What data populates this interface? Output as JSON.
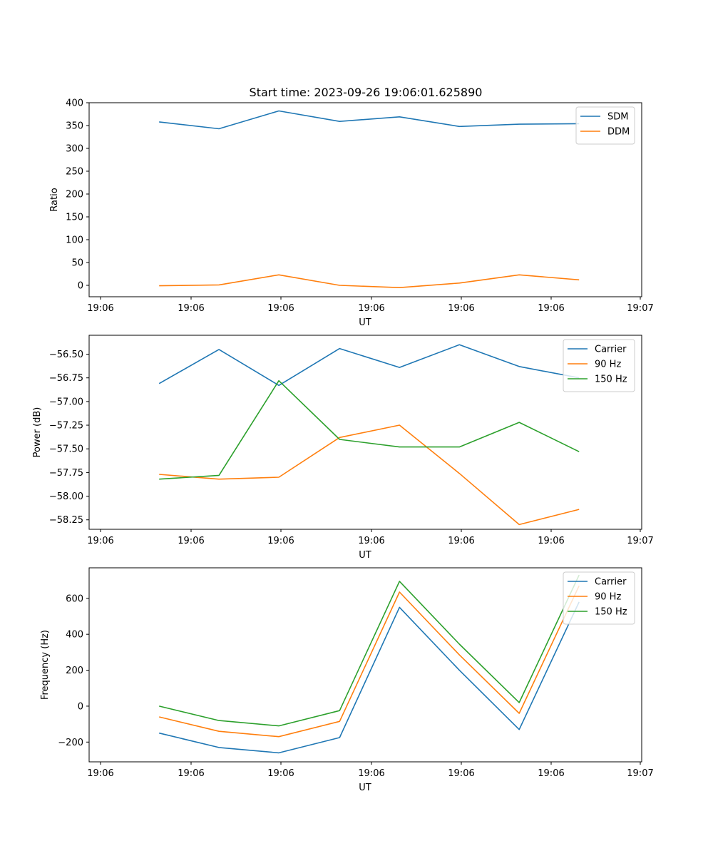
{
  "title": "Start time: 2023-09-26 19:06:01.625890",
  "colors": {
    "blue": "#1f77b4",
    "orange": "#ff7f0e",
    "green": "#2ca02c"
  },
  "chart_data": [
    {
      "type": "line",
      "title": "Start time: 2023-09-26 19:06:01.625890",
      "xlabel": "UT",
      "ylabel": "Ratio",
      "x": [
        0.76,
        1.41,
        2.06,
        2.72,
        3.37,
        4.02,
        4.67,
        5.32
      ],
      "xlim": [
        0,
        6
      ],
      "x_tick_positions": [
        0.0,
        1.0,
        2.0,
        3.0,
        4.0,
        5.0,
        6.0
      ],
      "x_tick_labels": [
        "19:06",
        "19:06",
        "19:06",
        "19:06",
        "19:06",
        "19:06",
        "19:07"
      ],
      "ylim": [
        -25,
        400
      ],
      "y_ticks": [
        0,
        50,
        100,
        150,
        200,
        250,
        300,
        350,
        400
      ],
      "y_tick_labels": [
        "0",
        "50",
        "100",
        "150",
        "200",
        "250",
        "300",
        "350",
        "400"
      ],
      "legend": "top-right",
      "series": [
        {
          "name": "SDM",
          "color": "#1f77b4",
          "values": [
            358,
            343,
            382,
            359,
            369,
            348,
            353,
            354
          ]
        },
        {
          "name": "DDM",
          "color": "#ff7f0e",
          "values": [
            -1,
            1,
            23,
            0,
            -5,
            5,
            23,
            12
          ]
        }
      ]
    },
    {
      "type": "line",
      "xlabel": "UT",
      "ylabel": "Power (dB)",
      "x": [
        0.76,
        1.41,
        2.06,
        2.72,
        3.37,
        4.02,
        4.67,
        5.32
      ],
      "xlim": [
        0,
        6
      ],
      "x_tick_positions": [
        0.0,
        1.0,
        2.0,
        3.0,
        4.0,
        5.0,
        6.0
      ],
      "x_tick_labels": [
        "19:06",
        "19:06",
        "19:06",
        "19:06",
        "19:06",
        "19:06",
        "19:07"
      ],
      "ylim": [
        -58.35,
        -56.3
      ],
      "y_ticks": [
        -56.5,
        -56.75,
        -57.0,
        -57.25,
        -57.5,
        -57.75,
        -58.0,
        -58.25
      ],
      "y_tick_labels": [
        "−56.50",
        "−56.75",
        "−57.00",
        "−57.25",
        "−57.50",
        "−57.75",
        "−58.00",
        "−58.25"
      ],
      "legend": "top-right",
      "series": [
        {
          "name": "Carrier",
          "color": "#1f77b4",
          "values": [
            -56.81,
            -56.45,
            -56.83,
            -56.44,
            -56.64,
            -56.4,
            -56.63,
            -56.75
          ]
        },
        {
          "name": "90 Hz",
          "color": "#ff7f0e",
          "values": [
            -57.77,
            -57.82,
            -57.8,
            -57.38,
            -57.25,
            -57.76,
            -58.3,
            -58.14
          ]
        },
        {
          "name": "150 Hz",
          "color": "#2ca02c",
          "values": [
            -57.82,
            -57.78,
            -56.78,
            -57.4,
            -57.48,
            -57.48,
            -57.22,
            -57.53
          ]
        }
      ]
    },
    {
      "type": "line",
      "xlabel": "UT",
      "ylabel": "Frequency (Hz)",
      "x": [
        0.76,
        1.41,
        2.06,
        2.72,
        3.37,
        4.02,
        4.67,
        5.32
      ],
      "xlim": [
        0,
        6
      ],
      "x_tick_positions": [
        0.0,
        1.0,
        2.0,
        3.0,
        4.0,
        5.0,
        6.0
      ],
      "x_tick_labels": [
        "19:06",
        "19:06",
        "19:06",
        "19:06",
        "19:06",
        "19:06",
        "19:07"
      ],
      "ylim": [
        -310,
        770
      ],
      "y_ticks": [
        -200,
        0,
        200,
        400,
        600
      ],
      "y_tick_labels": [
        "−200",
        "0",
        "200",
        "400",
        "600"
      ],
      "legend": "top-right",
      "series": [
        {
          "name": "Carrier",
          "color": "#1f77b4",
          "values": [
            -150,
            -230,
            -260,
            -175,
            550,
            200,
            -130,
            580
          ]
        },
        {
          "name": "90 Hz",
          "color": "#ff7f0e",
          "values": [
            -60,
            -140,
            -170,
            -85,
            635,
            285,
            -40,
            670
          ]
        },
        {
          "name": "150 Hz",
          "color": "#2ca02c",
          "values": [
            0,
            -80,
            -110,
            -25,
            695,
            345,
            20,
            730
          ]
        }
      ]
    }
  ]
}
